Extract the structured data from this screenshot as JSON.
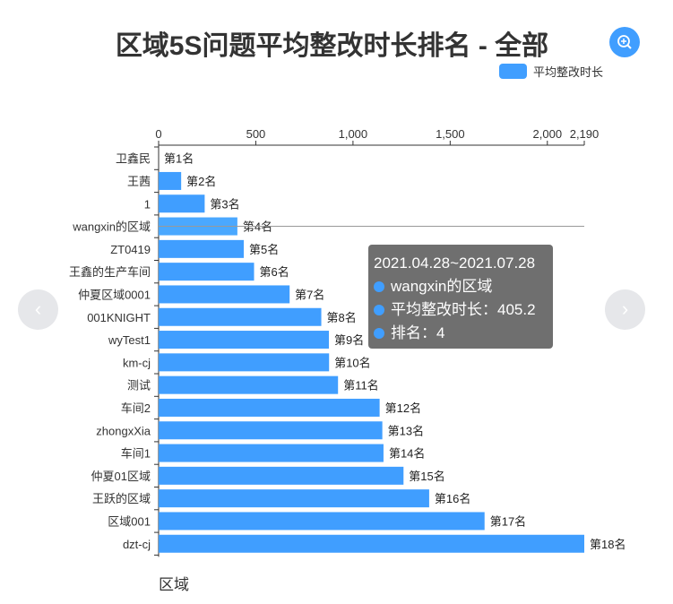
{
  "title": "区域5S问题平均整改时长排名 - 全部",
  "legend": {
    "label": "平均整改时长",
    "color": "#409eff"
  },
  "zoom_button_icon": "zoom-in-icon",
  "nav": {
    "prev_icon": "chevron-left-icon",
    "next_icon": "chevron-right-icon",
    "prev": "‹",
    "next": "›"
  },
  "tooltip": {
    "period": "2021.04.28~2021.07.28",
    "area": "wangxin的区域",
    "duration_line": "平均整改时长：405.2",
    "rank_line": "排名：4"
  },
  "chart_data": {
    "type": "bar",
    "orientation": "horizontal",
    "title": "区域5S问题平均整改时长排名 - 全部",
    "ylabel": "区域",
    "xlabel": "",
    "xlim": [
      0,
      2190
    ],
    "x_ticks": [
      {
        "v": 0,
        "label": "0"
      },
      {
        "v": 500,
        "label": "500"
      },
      {
        "v": 1000,
        "label": "1,000"
      },
      {
        "v": 1500,
        "label": "1,500"
      },
      {
        "v": 2000,
        "label": "2,000"
      },
      {
        "v": 2190,
        "label": "2,190"
      }
    ],
    "grid": false,
    "legend_position": "top-right",
    "series": [
      {
        "name": "平均整改时长",
        "color": "#409eff"
      }
    ],
    "categories": [
      "卫鑫民",
      "王茜",
      "1",
      "wangxin的区域",
      "ZT0419",
      "王鑫的生产车间",
      "仲夏区域0001",
      "001KNIGHT",
      "wyTest1",
      "km-cj",
      "测试",
      "车间2",
      "zhongxXia",
      "车间1",
      "仲夏01区域",
      "王跃的区域",
      "区域001",
      "dzt-cj"
    ],
    "values": [
      0,
      116,
      237,
      405.2,
      438,
      491,
      674,
      837,
      876,
      877,
      923,
      1137,
      1151,
      1157,
      1260,
      1392,
      1677,
      2190
    ],
    "data_labels": [
      "第1名",
      "第2名",
      "第3名",
      "第4名",
      "第5名",
      "第6名",
      "第7名",
      "第8名",
      "第9名",
      "第10名",
      "第11名",
      "第12名",
      "第13名",
      "第14名",
      "第15名",
      "第16名",
      "第17名",
      "第18名"
    ],
    "highlighted_index": 3
  }
}
